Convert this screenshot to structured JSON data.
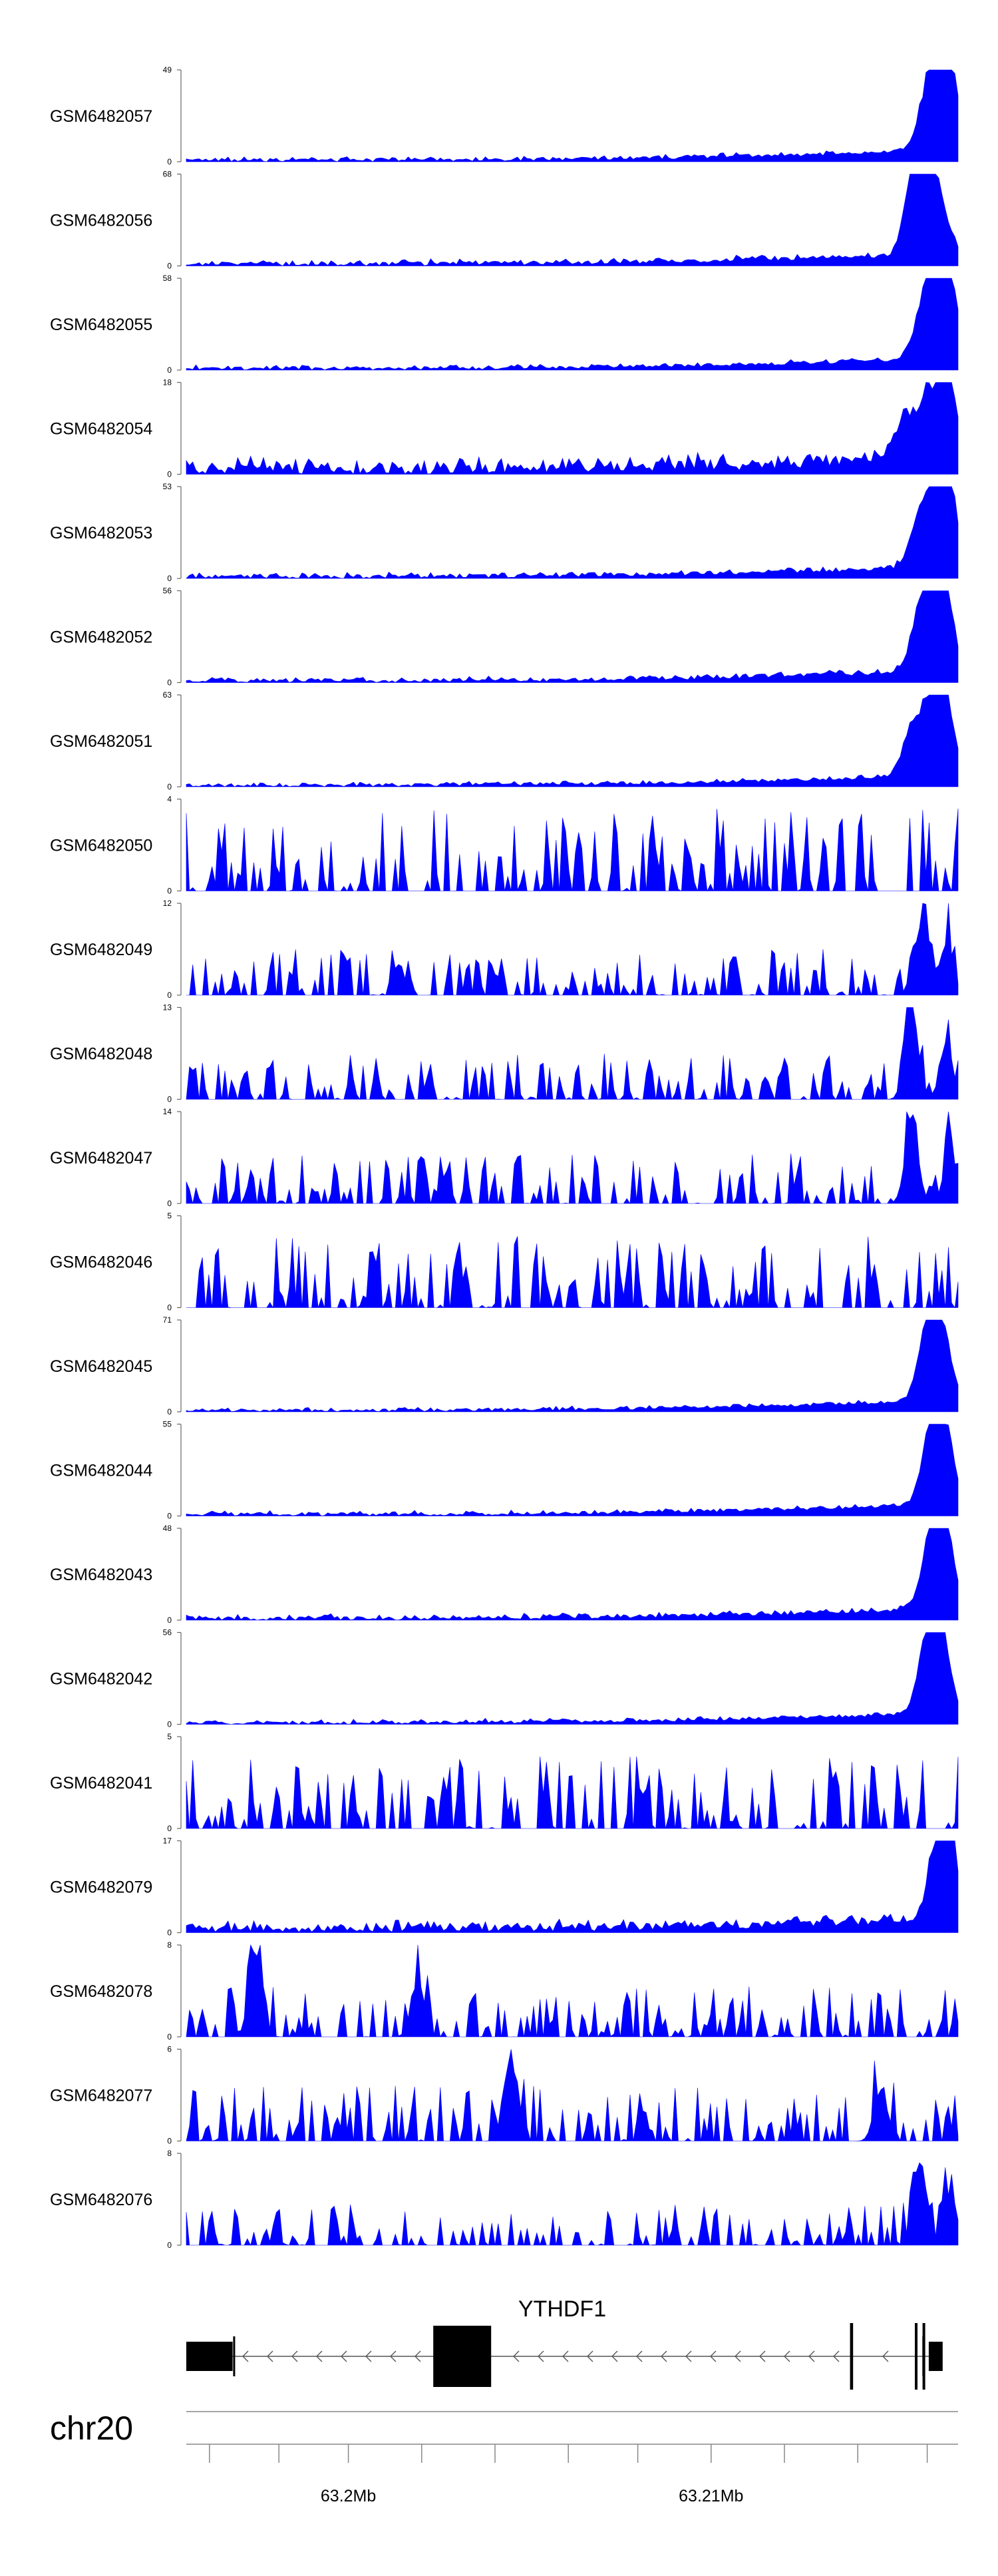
{
  "chart_data": {
    "type": "area",
    "tracks": [
      {
        "name": "GSM6482057",
        "ymax": 49,
        "ymin": 0,
        "peak_x": [
          0.985,
          0.975,
          0.96
        ],
        "noise": 0.06
      },
      {
        "name": "GSM6482056",
        "ymax": 68,
        "ymin": 0,
        "peak_x": [
          0.945,
          0.96,
          0.975
        ],
        "noise": 0.08
      },
      {
        "name": "GSM6482055",
        "ymax": 58,
        "ymin": 0,
        "peak_x": [
          0.985,
          0.97,
          0.955
        ],
        "noise": 0.06
      },
      {
        "name": "GSM6482054",
        "ymax": 18,
        "ymin": 0,
        "peak_x": [
          0.985,
          0.96,
          0.93
        ],
        "noise": 0.22
      },
      {
        "name": "GSM6482053",
        "ymax": 53,
        "ymin": 0,
        "peak_x": [
          0.985,
          0.97,
          0.95
        ],
        "noise": 0.07
      },
      {
        "name": "GSM6482052",
        "ymax": 56,
        "ymin": 0,
        "peak_x": [
          0.98,
          0.965,
          0.95
        ],
        "noise": 0.07
      },
      {
        "name": "GSM6482051",
        "ymax": 63,
        "ymin": 0,
        "peak_x": [
          0.98,
          0.965,
          0.94
        ],
        "noise": 0.06
      },
      {
        "name": "GSM6482050",
        "ymax": 4,
        "ymin": 0,
        "peak_x": [],
        "noise": 0.9
      },
      {
        "name": "GSM6482049",
        "ymax": 12,
        "ymin": 0,
        "peak_x": [
          0.955,
          0.985
        ],
        "noise": 0.5
      },
      {
        "name": "GSM6482048",
        "ymax": 13,
        "ymin": 0,
        "peak_x": [
          0.94,
          0.985
        ],
        "noise": 0.5
      },
      {
        "name": "GSM6482047",
        "ymax": 14,
        "ymin": 0,
        "peak_x": [
          0.94,
          0.99
        ],
        "noise": 0.55
      },
      {
        "name": "GSM6482046",
        "ymax": 5,
        "ymin": 0,
        "peak_x": [],
        "noise": 0.8
      },
      {
        "name": "GSM6482045",
        "ymax": 71,
        "ymin": 0,
        "peak_x": [
          0.975,
          0.96
        ],
        "noise": 0.05
      },
      {
        "name": "GSM6482044",
        "ymax": 55,
        "ymin": 0,
        "peak_x": [
          0.98,
          0.965
        ],
        "noise": 0.06
      },
      {
        "name": "GSM6482043",
        "ymax": 48,
        "ymin": 0,
        "peak_x": [
          0.98,
          0.965
        ],
        "noise": 0.07
      },
      {
        "name": "GSM6482042",
        "ymax": 56,
        "ymin": 0,
        "peak_x": [
          0.975,
          0.96
        ],
        "noise": 0.06
      },
      {
        "name": "GSM6482041",
        "ymax": 5,
        "ymin": 0,
        "peak_x": [],
        "noise": 0.8
      },
      {
        "name": "GSM6482079",
        "ymax": 17,
        "ymin": 0,
        "peak_x": [
          0.985,
          0.975
        ],
        "noise": 0.15
      },
      {
        "name": "GSM6482078",
        "ymax": 8,
        "ymin": 0,
        "peak_x": [
          0.09,
          0.3
        ],
        "noise": 0.55
      },
      {
        "name": "GSM6482077",
        "ymax": 6,
        "ymin": 0,
        "peak_x": [
          0.42,
          0.9
        ],
        "noise": 0.6
      },
      {
        "name": "GSM6482076",
        "ymax": 8,
        "ymin": 0,
        "peak_x": [
          0.95,
          0.99
        ],
        "noise": 0.45
      }
    ],
    "gene": {
      "name": "YTHDF1",
      "strand": "-",
      "exons": [
        [
          0.0,
          0.06
        ],
        [
          0.32,
          0.395
        ],
        [
          0.86,
          0.864
        ],
        [
          0.944,
          0.947
        ],
        [
          0.954,
          0.957
        ],
        [
          0.962,
          0.98
        ]
      ]
    },
    "chromosome": "chr20",
    "axis": {
      "labels": [
        {
          "text": "63.2Mb",
          "pos": 0.21
        },
        {
          "text": "63.21Mb",
          "pos": 0.68
        }
      ],
      "ticks": [
        0.03,
        0.12,
        0.21,
        0.305,
        0.4,
        0.495,
        0.585,
        0.68,
        0.775,
        0.87,
        0.96
      ]
    },
    "fill_color": "#0000ff",
    "gene_color": "#000000"
  }
}
